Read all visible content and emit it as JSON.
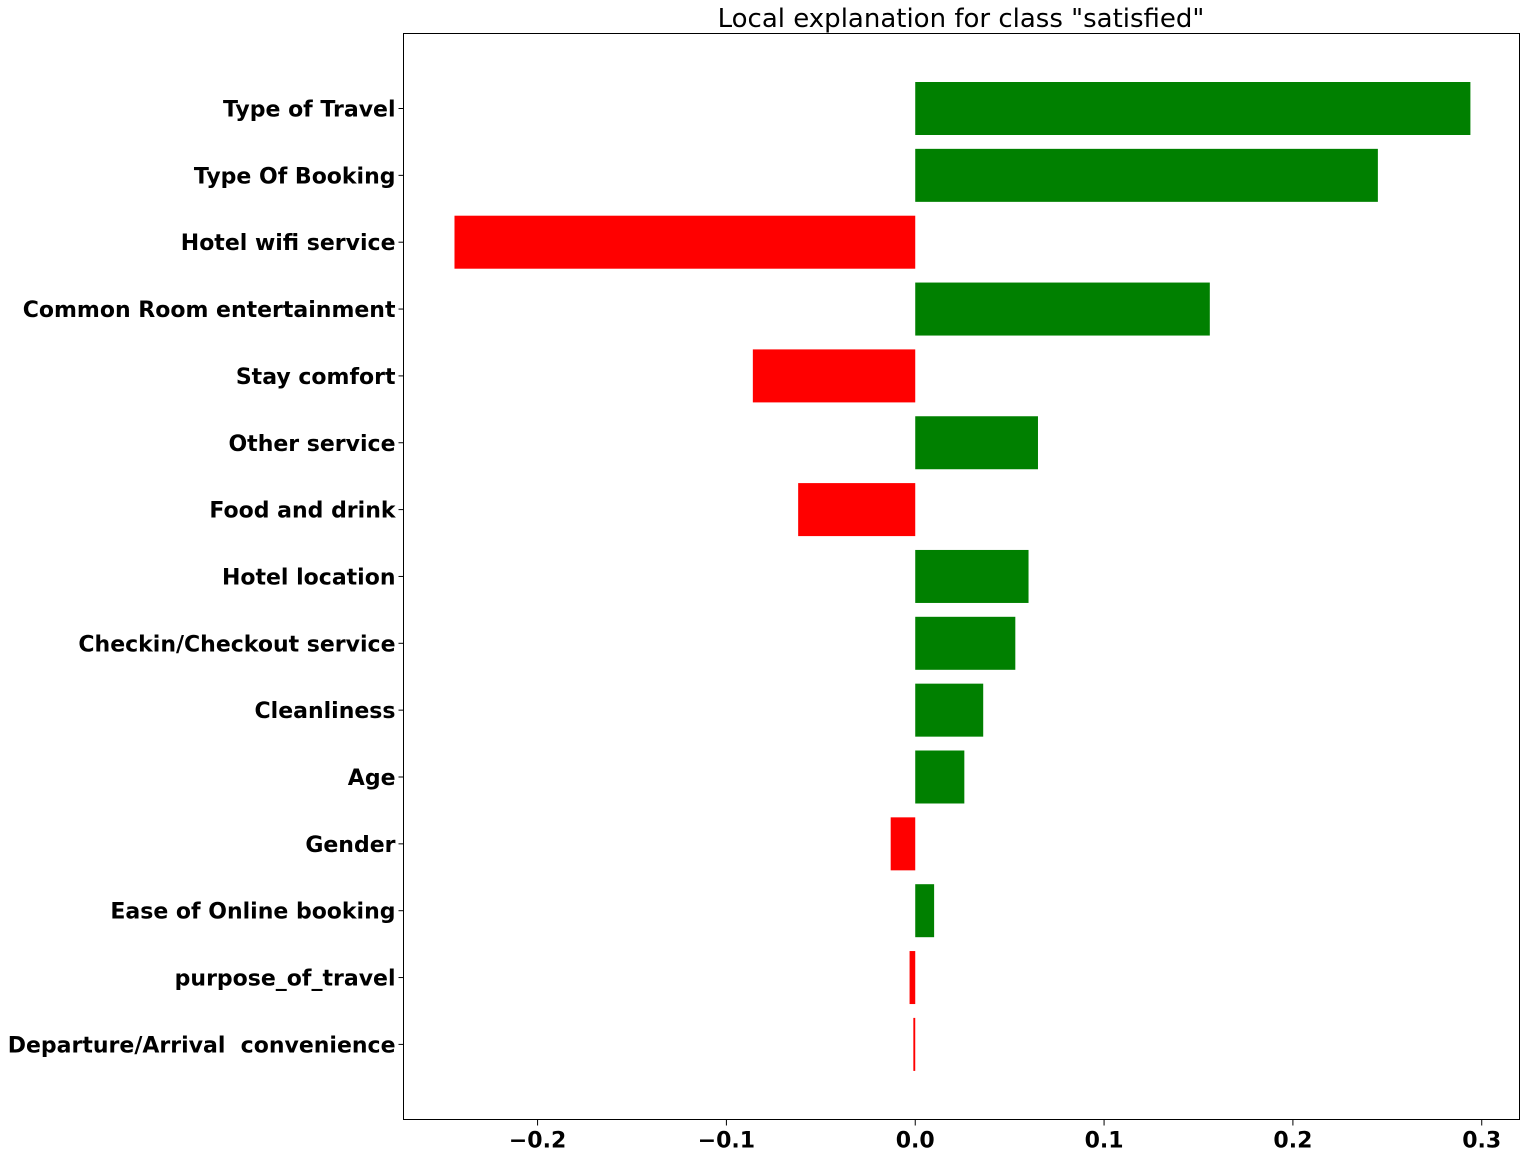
{
  "chart_data": {
    "type": "bar",
    "orientation": "horizontal",
    "title": "Local explanation for class \"satisfied\"",
    "xlabel": "",
    "ylabel": "",
    "categories": [
      "Type of Travel",
      "Type Of Booking",
      "Hotel wifi service",
      "Common Room entertainment",
      "Stay comfort",
      "Other service",
      "Food and drink",
      "Hotel location",
      "Checkin/Checkout service",
      "Cleanliness",
      "Age",
      "Gender",
      "Ease of Online booking",
      "purpose_of_travel",
      "Departure/Arrival  convenience"
    ],
    "values": [
      0.294,
      0.245,
      -0.244,
      0.156,
      -0.086,
      0.065,
      -0.062,
      0.06,
      0.053,
      0.036,
      0.026,
      -0.013,
      0.01,
      -0.003,
      -0.001
    ],
    "xlim": [
      -0.271,
      0.32
    ],
    "xticks": [
      -0.2,
      -0.1,
      0.0,
      0.1,
      0.2,
      0.3
    ],
    "xtick_labels": [
      "−0.2",
      "−0.1",
      "0.0",
      "0.1",
      "0.2",
      "0.3"
    ],
    "colors": {
      "positive": "#008000",
      "negative": "#ff0000"
    },
    "grid": false,
    "legend": "none"
  }
}
